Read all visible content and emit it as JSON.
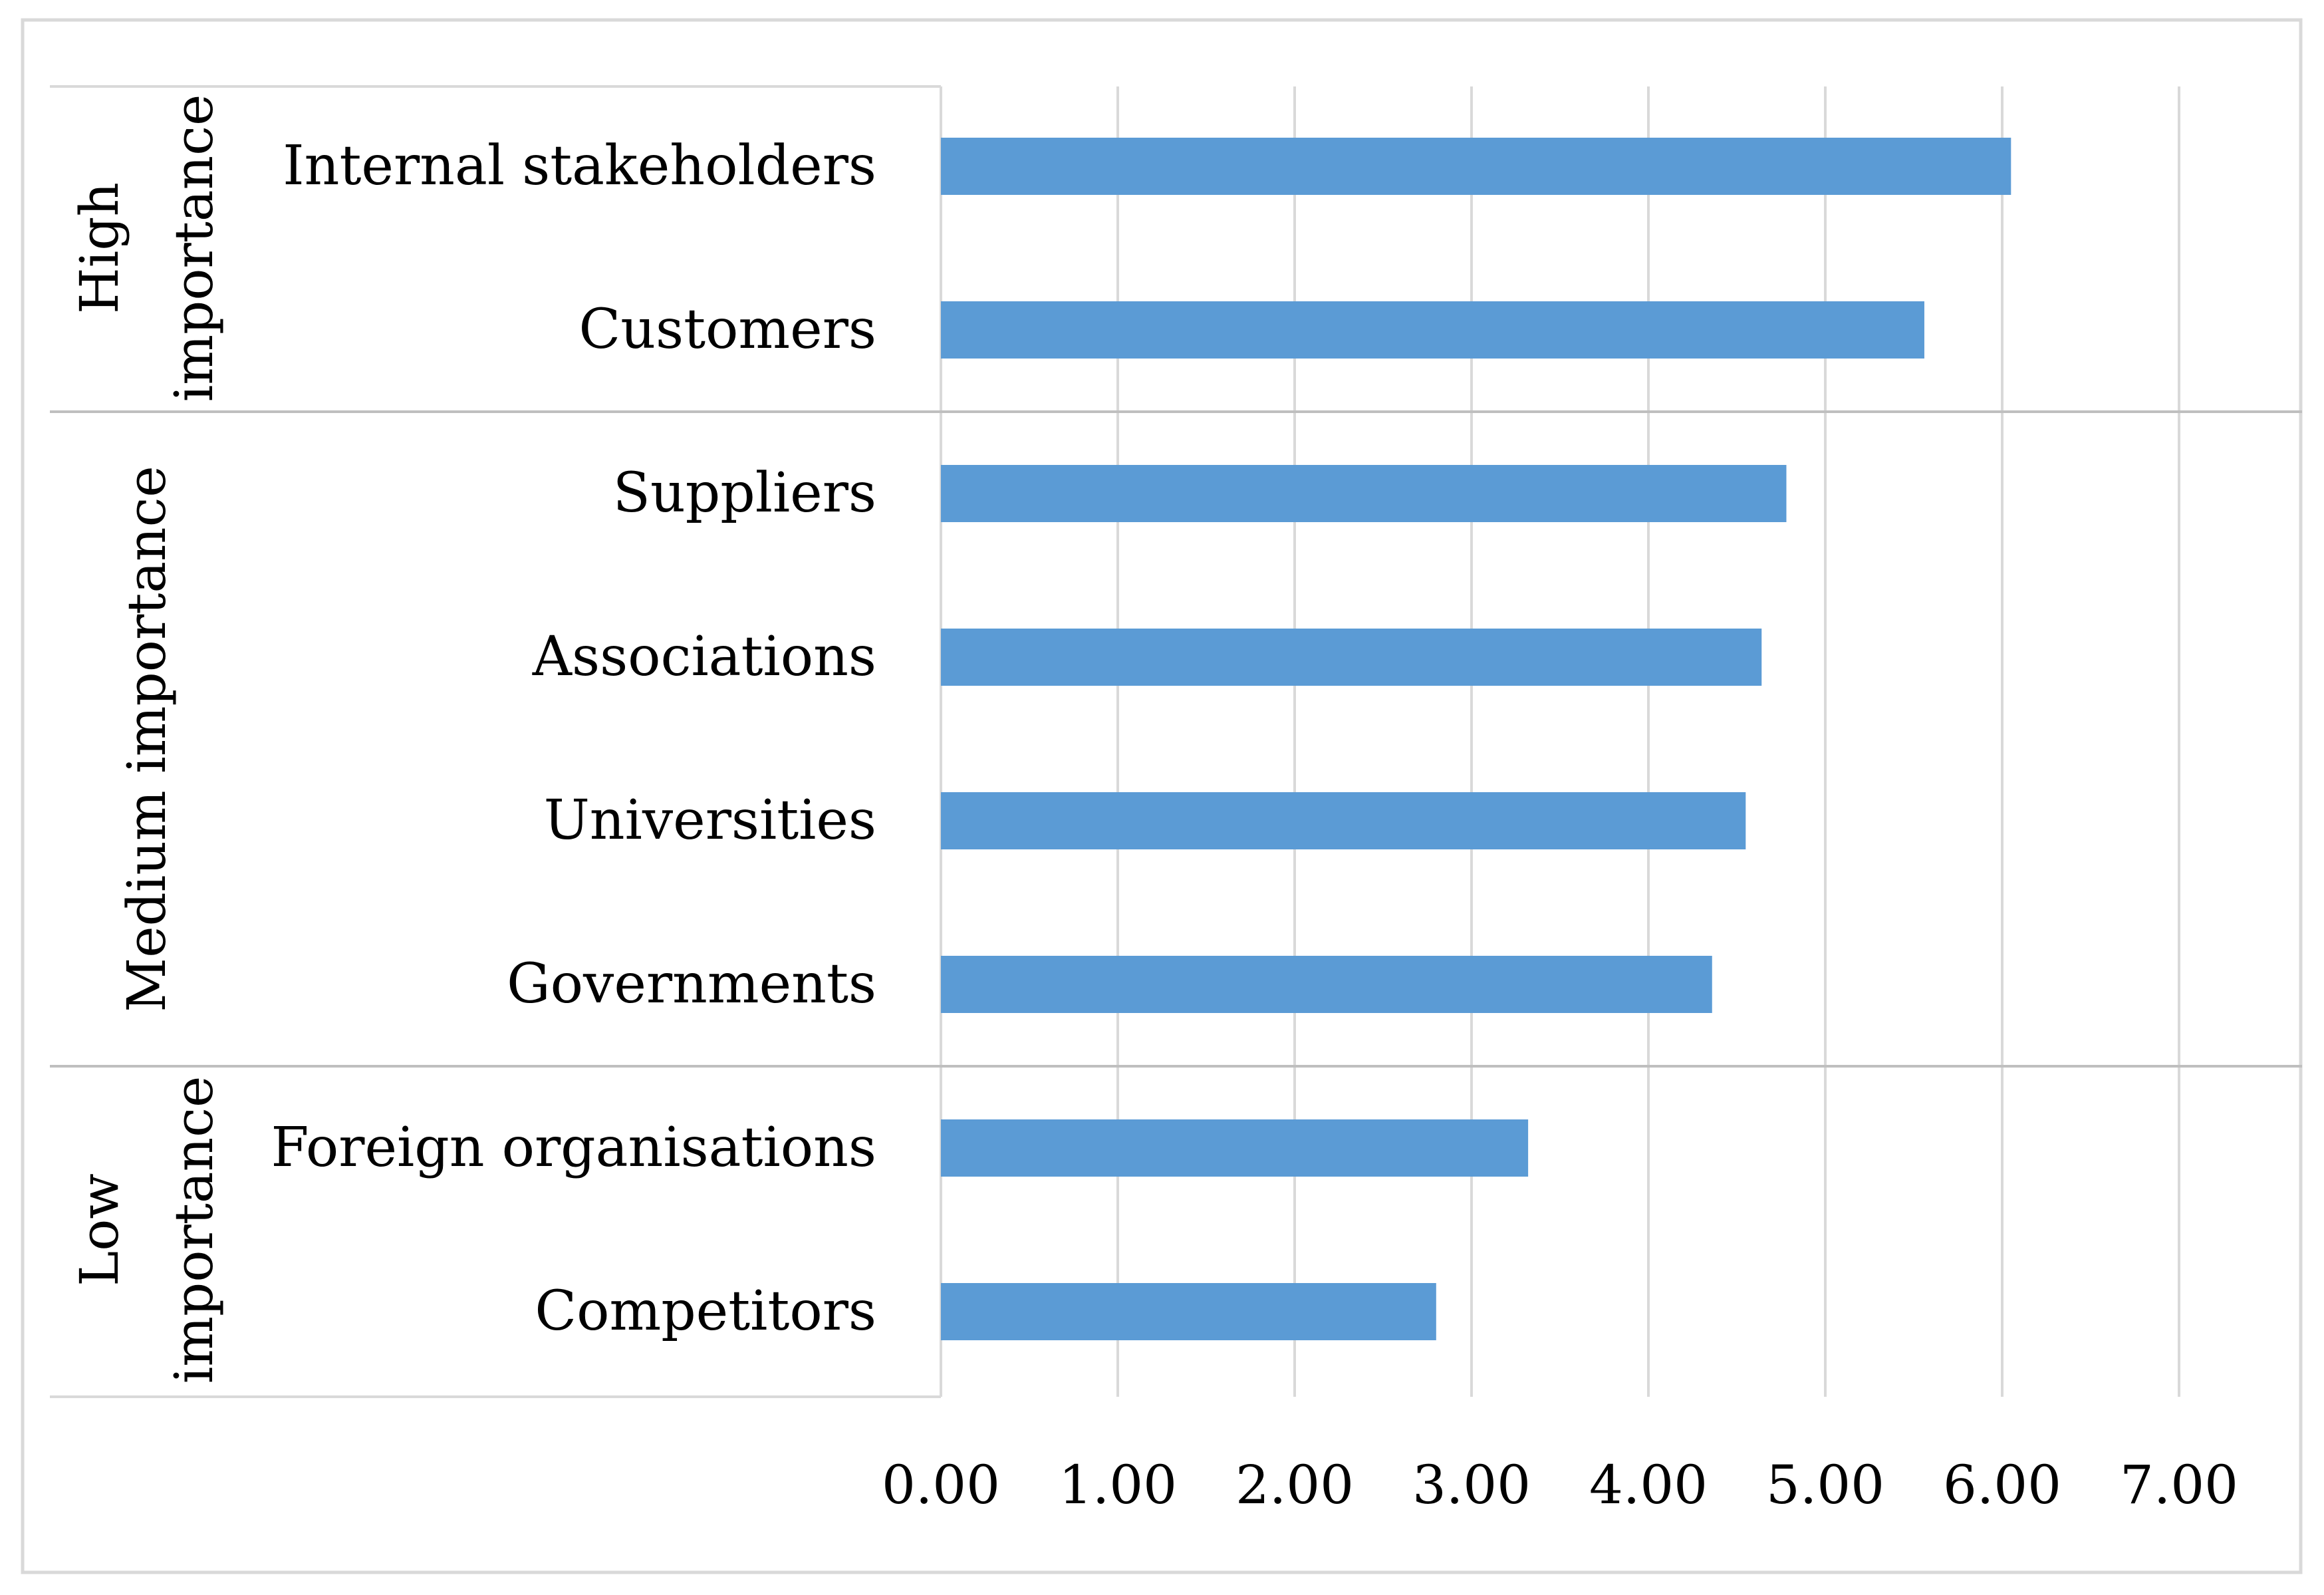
{
  "chart_data": {
    "type": "bar",
    "orientation": "horizontal",
    "title": "",
    "xlabel": "",
    "ylabel": "",
    "xlim": [
      0,
      7
    ],
    "x_ticks": [
      "0.00",
      "1.00",
      "2.00",
      "3.00",
      "4.00",
      "5.00",
      "6.00",
      "7.00"
    ],
    "grid": true,
    "bar_color": "#5b9bd5",
    "groups": [
      {
        "name": "High importance",
        "label_lines": [
          "High",
          "importance"
        ],
        "count": 2
      },
      {
        "name": "Medium importance",
        "label_lines": [
          "Medium importance"
        ],
        "count": 4
      },
      {
        "name": "Low importance",
        "label_lines": [
          "Low",
          "importance"
        ],
        "count": 2
      }
    ],
    "categories": [
      "Internal stakeholders",
      "Customers",
      "Suppliers",
      "Associations",
      "Universities",
      "Governments",
      "Foreign organisations",
      "Competitors"
    ],
    "values": [
      6.05,
      5.56,
      4.78,
      4.64,
      4.55,
      4.36,
      3.32,
      2.8
    ]
  }
}
